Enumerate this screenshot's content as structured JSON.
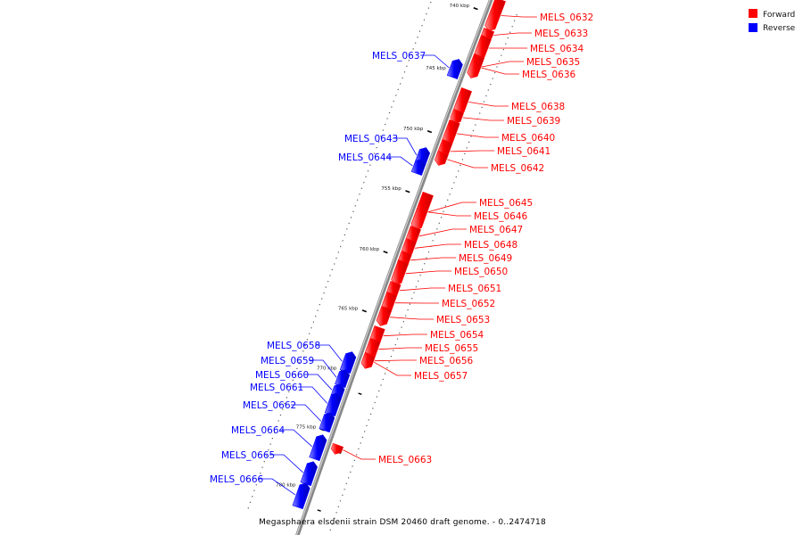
{
  "caption": "Megasphaera elsdenii strain DSM 20460 draft genome. - 0..2474718",
  "legend": [
    {
      "label": "Forward",
      "color": "#ff0000"
    },
    {
      "label": "Reverse",
      "color": "#0000ff"
    }
  ],
  "colors": {
    "forward": "#ff0000",
    "reverse": "#0000ff",
    "backbone": "#888888"
  },
  "ticks": [
    {
      "label": "740 kbp"
    },
    {
      "label": "745 kbp"
    },
    {
      "label": "750 kbp"
    },
    {
      "label": "755 kbp"
    },
    {
      "label": "760 kbp"
    },
    {
      "label": "765 kbp"
    },
    {
      "label": "770 kbp"
    },
    {
      "label": "775 kbp"
    },
    {
      "label": "780 kbp"
    }
  ],
  "genes": [
    {
      "name": "MELS_0632",
      "strand": "forward"
    },
    {
      "name": "MELS_0633",
      "strand": "forward"
    },
    {
      "name": "MELS_0634",
      "strand": "forward"
    },
    {
      "name": "MELS_0635",
      "strand": "forward"
    },
    {
      "name": "MELS_0636",
      "strand": "forward"
    },
    {
      "name": "MELS_0637",
      "strand": "reverse"
    },
    {
      "name": "MELS_0638",
      "strand": "forward"
    },
    {
      "name": "MELS_0639",
      "strand": "forward"
    },
    {
      "name": "MELS_0640",
      "strand": "forward"
    },
    {
      "name": "MELS_0641",
      "strand": "forward"
    },
    {
      "name": "MELS_0642",
      "strand": "forward"
    },
    {
      "name": "MELS_0643",
      "strand": "reverse"
    },
    {
      "name": "MELS_0644",
      "strand": "reverse"
    },
    {
      "name": "MELS_0645",
      "strand": "forward"
    },
    {
      "name": "MELS_0646",
      "strand": "forward"
    },
    {
      "name": "MELS_0647",
      "strand": "forward"
    },
    {
      "name": "MELS_0648",
      "strand": "forward"
    },
    {
      "name": "MELS_0649",
      "strand": "forward"
    },
    {
      "name": "MELS_0650",
      "strand": "forward"
    },
    {
      "name": "MELS_0651",
      "strand": "forward"
    },
    {
      "name": "MELS_0652",
      "strand": "forward"
    },
    {
      "name": "MELS_0653",
      "strand": "forward"
    },
    {
      "name": "MELS_0654",
      "strand": "forward"
    },
    {
      "name": "MELS_0655",
      "strand": "forward"
    },
    {
      "name": "MELS_0656",
      "strand": "forward"
    },
    {
      "name": "MELS_0657",
      "strand": "forward"
    },
    {
      "name": "MELS_0658",
      "strand": "reverse"
    },
    {
      "name": "MELS_0659",
      "strand": "reverse"
    },
    {
      "name": "MELS_0660",
      "strand": "reverse"
    },
    {
      "name": "MELS_0661",
      "strand": "reverse"
    },
    {
      "name": "MELS_0662",
      "strand": "reverse"
    },
    {
      "name": "MELS_0663",
      "strand": "forward"
    },
    {
      "name": "MELS_0664",
      "strand": "reverse"
    },
    {
      "name": "MELS_0665",
      "strand": "reverse"
    },
    {
      "name": "MELS_0666",
      "strand": "reverse"
    }
  ]
}
